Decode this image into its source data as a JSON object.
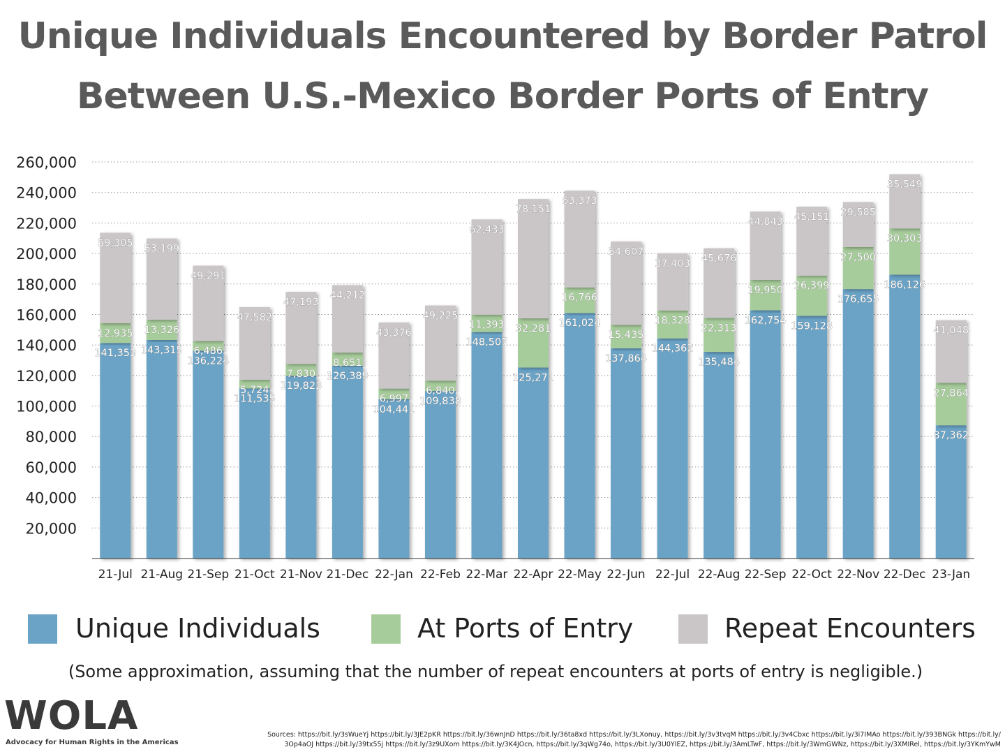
{
  "title_line1": "Unique Individuals Encountered by Border Patrol",
  "title_line2": "Between U.S.-Mexico Border Ports of Entry",
  "note": "(Some approximation, assuming that the number of repeat encounters at ports of entry is negligible.)",
  "logo_text": "WOLA",
  "logo_subtitle": "Advocacy for Human Rights in the Americas",
  "sources_line1": "Sources: https://bit.ly/3sWueYj https://bit.ly/3JE2pKR https://bit.ly/36wnJnD https://bit.ly/36ta8xd https://bit.ly/3LXonuy, https://bit.ly/3v3tvqM https://bit.ly/3v4Cbxc https://bit.ly/3i7IMAo https://bit.ly/393BNGk https://bit.ly/",
  "sources_line2": "3Op4aOJ https://bit.ly/39tx55j https://bit.ly/3z9UXom https://bit.ly/3K4JOcn, https://bit.ly/3qWg74o, https://bit.ly/3U0YIEZ, https://bit.ly/3AmLTwF, https://bit.ly/3WmGWNz, https://bit.ly/3XMIRel, https://bit.ly/3YKmYwM",
  "chart_data": {
    "type": "bar",
    "stacked": true,
    "categories": [
      "21-Jul",
      "21-Aug",
      "21-Sep",
      "21-Oct",
      "21-Nov",
      "21-Dec",
      "22-Jan",
      "22-Feb",
      "22-Mar",
      "22-Apr",
      "22-May",
      "22-Jun",
      "22-Jul",
      "22-Aug",
      "22-Sep",
      "22-Oct",
      "22-Nov",
      "22-Dec",
      "23-Jan"
    ],
    "series": [
      {
        "name": "Unique Individuals",
        "color": "#6aa3c6",
        "values": [
          141353,
          143315,
          136224,
          111535,
          119823,
          126389,
          104441,
          109838,
          148507,
          125271,
          161024,
          137864,
          144362,
          135484,
          162754,
          159128,
          176655,
          186126,
          87362
        ]
      },
      {
        "name": "At Ports of Entry",
        "color": "#a7cc9b",
        "values": [
          12935,
          13326,
          6486,
          5724,
          7830,
          8651,
          6997,
          6840,
          11393,
          32281,
          16766,
          15435,
          18328,
          22313,
          19950,
          26399,
          27500,
          30303,
          27864
        ]
      },
      {
        "name": "Repeat Encounters",
        "color": "#cac6c8",
        "values": [
          59305,
          53199,
          49291,
          47582,
          47193,
          44212,
          43376,
          49225,
          62433,
          78151,
          63373,
          54607,
          37403,
          45676,
          44843,
          45151,
          29585,
          35549,
          41048
        ]
      }
    ],
    "ylim": [
      0,
      260000
    ],
    "yticks": [
      20000,
      40000,
      60000,
      80000,
      100000,
      120000,
      140000,
      160000,
      180000,
      200000,
      220000,
      240000,
      260000
    ],
    "ytick_labels": [
      "20,000",
      "40,000",
      "60,000",
      "80,000",
      "100,000",
      "120,000",
      "140,000",
      "160,000",
      "180,000",
      "200,000",
      "220,000",
      "240,000",
      "260,000"
    ],
    "grid": "dotted horizontal",
    "legend": "bottom",
    "data_labels": true
  }
}
